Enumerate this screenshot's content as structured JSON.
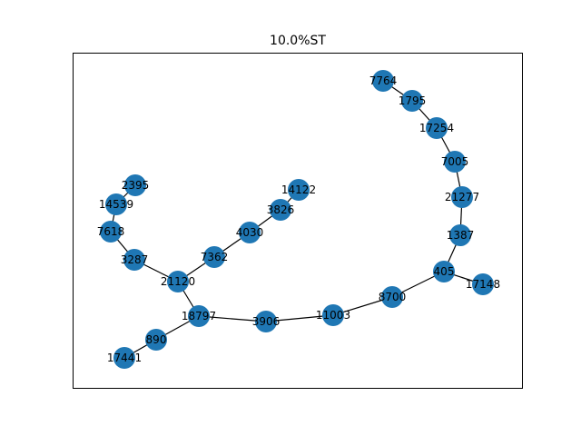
{
  "title": "10.0%ST",
  "colors": {
    "node": "#1f77b4",
    "edge": "#000000",
    "frame": "#000000"
  },
  "nodes": [
    {
      "id": "7764"
    },
    {
      "id": "1795"
    },
    {
      "id": "17254"
    },
    {
      "id": "7005"
    },
    {
      "id": "21277"
    },
    {
      "id": "1387"
    },
    {
      "id": "405"
    },
    {
      "id": "17148"
    },
    {
      "id": "8700"
    },
    {
      "id": "11003"
    },
    {
      "id": "3906"
    },
    {
      "id": "18797"
    },
    {
      "id": "890"
    },
    {
      "id": "17441"
    },
    {
      "id": "21120"
    },
    {
      "id": "3287"
    },
    {
      "id": "7618"
    },
    {
      "id": "14539"
    },
    {
      "id": "2395"
    },
    {
      "id": "7362"
    },
    {
      "id": "4030"
    },
    {
      "id": "3826"
    },
    {
      "id": "14122"
    }
  ],
  "edges": [
    [
      "7764",
      "1795"
    ],
    [
      "1795",
      "17254"
    ],
    [
      "17254",
      "7005"
    ],
    [
      "7005",
      "21277"
    ],
    [
      "21277",
      "1387"
    ],
    [
      "1387",
      "405"
    ],
    [
      "405",
      "17148"
    ],
    [
      "405",
      "8700"
    ],
    [
      "8700",
      "11003"
    ],
    [
      "11003",
      "3906"
    ],
    [
      "3906",
      "18797"
    ],
    [
      "18797",
      "890"
    ],
    [
      "890",
      "17441"
    ],
    [
      "18797",
      "21120"
    ],
    [
      "21120",
      "3287"
    ],
    [
      "3287",
      "7618"
    ],
    [
      "7618",
      "14539"
    ],
    [
      "14539",
      "2395"
    ],
    [
      "21120",
      "7362"
    ],
    [
      "7362",
      "4030"
    ],
    [
      "4030",
      "3826"
    ],
    [
      "3826",
      "14122"
    ]
  ]
}
